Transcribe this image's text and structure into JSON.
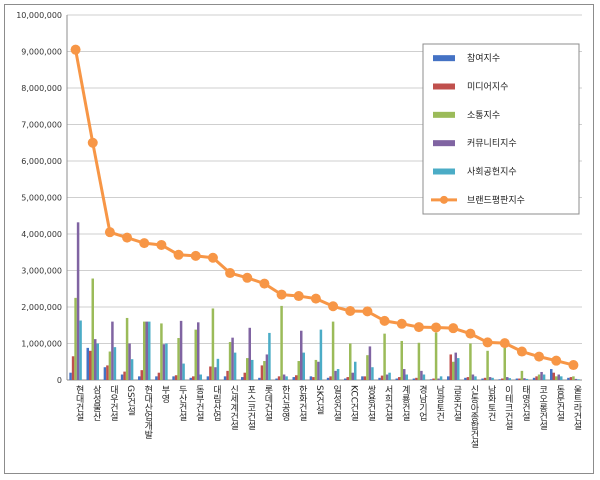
{
  "chart_data": {
    "type": "bar",
    "title": "",
    "xlabel": "",
    "ylabel": "",
    "ylim": [
      0,
      10000000
    ],
    "yticks": [
      "0",
      "1,000,000",
      "2,000,000",
      "3,000,000",
      "4,000,000",
      "5,000,000",
      "6,000,000",
      "7,000,000",
      "8,000,000",
      "9,000,000",
      "10,000,000"
    ],
    "grid": true,
    "legend_position": "right",
    "categories": [
      "현대건설",
      "삼성물산",
      "대우건설",
      "GS건설",
      "현대산업개발",
      "부영",
      "두산건설",
      "동부건설",
      "대림산업",
      "신세계건설",
      "포스코건설",
      "롯데건설",
      "한신공영",
      "한화건설",
      "SK건설",
      "일성건설",
      "KCC건설",
      "쌍용건설",
      "서희건설",
      "계룡건설",
      "경남기업",
      "남광토건",
      "금호건설",
      "신동아종합건설",
      "남화토건",
      "이테크건설",
      "태영건설",
      "코오롱건설",
      "동문건설",
      "울트라건설"
    ],
    "series": [
      {
        "name": "참여지수",
        "color": "#4472c4",
        "kind": "bar",
        "values": [
          200000,
          880000,
          350000,
          150000,
          100000,
          100000,
          100000,
          60000,
          100000,
          100000,
          80000,
          60000,
          40000,
          80000,
          100000,
          60000,
          40000,
          100000,
          60000,
          40000,
          40000,
          20000,
          100000,
          60000,
          40000,
          20000,
          40000,
          60000,
          300000,
          60000
        ]
      },
      {
        "name": "미디어지수",
        "color": "#c0504d",
        "kind": "bar",
        "values": [
          650000,
          800000,
          400000,
          230000,
          270000,
          200000,
          130000,
          100000,
          370000,
          250000,
          200000,
          400000,
          100000,
          130000,
          80000,
          100000,
          80000,
          100000,
          120000,
          80000,
          60000,
          40000,
          700000,
          80000,
          60000,
          40000,
          40000,
          100000,
          200000,
          80000
        ]
      },
      {
        "name": "소통지수",
        "color": "#9bbb59",
        "kind": "bar",
        "values": [
          2250000,
          2780000,
          780000,
          1700000,
          1600000,
          1550000,
          1150000,
          1380000,
          1960000,
          1040000,
          600000,
          520000,
          2030000,
          520000,
          550000,
          1600000,
          1000000,
          680000,
          1270000,
          1070000,
          1020000,
          1300000,
          500000,
          1000000,
          800000,
          950000,
          250000,
          150000,
          100000,
          100000
        ]
      },
      {
        "name": "커뮤니티지수",
        "color": "#8064a2",
        "kind": "bar",
        "values": [
          4320000,
          1120000,
          1600000,
          1000000,
          1600000,
          980000,
          1620000,
          1580000,
          350000,
          1160000,
          1430000,
          700000,
          150000,
          1350000,
          500000,
          250000,
          200000,
          920000,
          150000,
          300000,
          250000,
          40000,
          750000,
          150000,
          80000,
          80000,
          50000,
          220000,
          150000,
          30000
        ]
      },
      {
        "name": "사회공헌지수",
        "color": "#4bacc6",
        "kind": "bar",
        "values": [
          1630000,
          1000000,
          900000,
          570000,
          1600000,
          1000000,
          450000,
          150000,
          580000,
          750000,
          550000,
          1290000,
          100000,
          750000,
          1380000,
          300000,
          500000,
          350000,
          200000,
          150000,
          150000,
          100000,
          600000,
          100000,
          60000,
          50000,
          30000,
          150000,
          100000,
          20000
        ]
      },
      {
        "name": "브랜드평판지수",
        "color": "#f79646",
        "kind": "line",
        "values": [
          9050000,
          6500000,
          4050000,
          3900000,
          3750000,
          3700000,
          3430000,
          3400000,
          3350000,
          2930000,
          2800000,
          2640000,
          2340000,
          2300000,
          2230000,
          2020000,
          1890000,
          1880000,
          1620000,
          1540000,
          1450000,
          1440000,
          1420000,
          1270000,
          1030000,
          1010000,
          780000,
          640000,
          530000,
          410000
        ]
      }
    ]
  }
}
